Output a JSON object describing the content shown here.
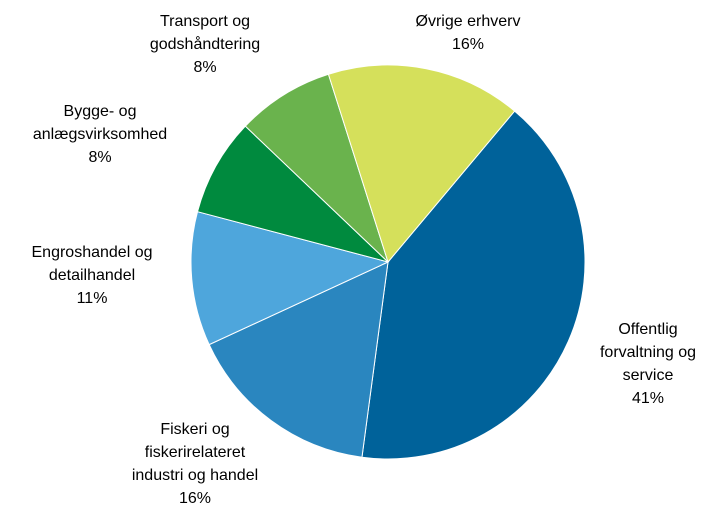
{
  "chart_data": {
    "type": "pie",
    "categories": [
      [
        "Offentlig",
        "forvaltning og",
        "service"
      ],
      [
        "Fiskeri og",
        "fiskerirelateret",
        "industri og handel"
      ],
      [
        "Engroshandel og",
        "detailhandel"
      ],
      [
        "Bygge- og",
        "anlægsvirksomhed"
      ],
      [
        "Transport og",
        "godshåndtering"
      ],
      [
        "Øvrige erhverv"
      ]
    ],
    "values": [
      41,
      16,
      11,
      8,
      8,
      16
    ],
    "value_labels": [
      "41%",
      "16%",
      "11%",
      "8%",
      "8%",
      "16%"
    ],
    "colors": [
      "#00629a",
      "#2a86bf",
      "#4ea6dc",
      "#008a3e",
      "#6ab34d",
      "#d5e05b"
    ]
  }
}
